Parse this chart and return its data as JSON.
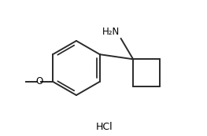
{
  "bg_color": "#ffffff",
  "line_color": "#2a2a2a",
  "line_width": 1.4,
  "text_color": "#000000",
  "nh2_label": "H₂N",
  "hcl_label": "HCl",
  "font_size_label": 8.5,
  "font_size_hcl": 9,
  "bx": 3.8,
  "by": 3.6,
  "br": 1.45,
  "ccx": 7.55,
  "ccy": 3.35,
  "sq": 0.72,
  "xlim": [
    0,
    10.5
  ],
  "ylim": [
    0,
    7.2
  ]
}
